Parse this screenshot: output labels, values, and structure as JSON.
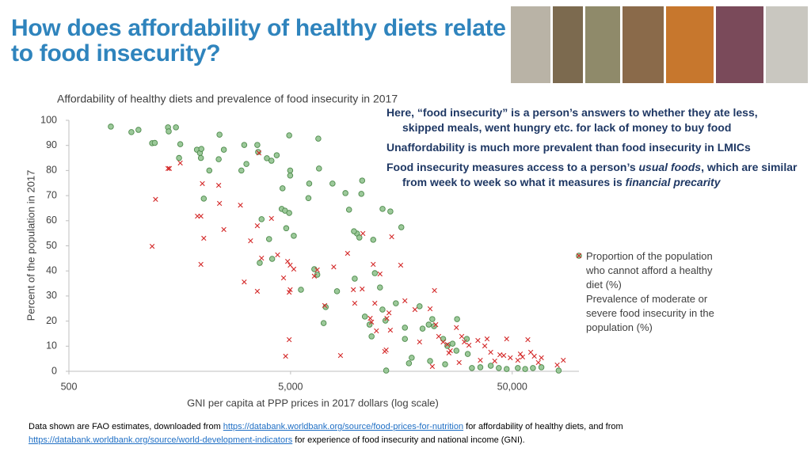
{
  "title": "How does affordability of healthy diets relate to food insecurity?",
  "chart_data": {
    "type": "scatter",
    "title": "Affordability of healthy diets and prevalence of food insecurity in 2017",
    "x_label": "GNI per capita at PPP prices in 2017 dollars (log scale)",
    "y_label": "Percent of the population in 2017",
    "x_log": true,
    "grid": false,
    "legend": "right",
    "xlim": [
      500,
      100000
    ],
    "xticks": [
      500,
      {
        "value": 5000,
        "label": "5,000"
      },
      {
        "value": 50000,
        "label": "50,000"
      }
    ],
    "ylim": [
      0,
      100
    ],
    "yticks": [
      0,
      10,
      20,
      30,
      40,
      50,
      60,
      70,
      80,
      90,
      100
    ],
    "series": [
      {
        "name": "Proportion of the population who cannot afford a healthy diet (%)",
        "color": "#9cc99a",
        "marker": "circle",
        "x": [
          773,
          957,
          1030,
          1187,
          1220,
          1400,
          1410,
          1520,
          1570,
          1590,
          1890,
          1950,
          1970,
          1980,
          2150,
          2030,
          2370,
          2390,
          2500,
          3000,
          3090,
          3160,
          3540,
          3570,
          3910,
          4100,
          4330,
          4600,
          4930,
          4980,
          4980,
          4560,
          4720,
          4930,
          4780,
          5170,
          6020,
          6670,
          6720,
          6070,
          4000,
          3700,
          3630,
          4130,
          7730,
          8840,
          9180,
          10430,
          10520,
          9970,
          9660,
          10220,
          11800,
          13000,
          14100,
          15800,
          6400,
          6600,
          5570,
          8100,
          7200,
          7050,
          9740,
          12000,
          12660,
          10820,
          11360,
          12990,
          13400,
          14930,
          16400,
          19100,
          19700,
          21000,
          21800,
          22200,
          24400,
          25500,
          26900,
          28200,
          28000,
          31500,
          35900,
          40000,
          47200,
          53000,
          57200,
          62000,
          67700,
          81000,
          13500,
          21300,
          17100,
          31200,
          32900,
          43500,
          17600,
          16400,
          24900,
          11600
        ],
        "values": [
          97.5,
          95.3,
          96.2,
          90.9,
          91,
          97.2,
          95.6,
          97.2,
          85,
          90.5,
          88.3,
          87,
          85,
          88.6,
          80,
          68.8,
          84.5,
          94.3,
          88.3,
          80,
          90.2,
          82.6,
          90.2,
          87.4,
          84.9,
          83.9,
          86.1,
          72.9,
          94,
          80,
          78,
          64.7,
          64,
          63.1,
          57,
          54,
          69,
          92.7,
          80.8,
          74.8,
          52.7,
          60.6,
          43.2,
          44.8,
          74.8,
          71,
          64.4,
          70.7,
          76,
          54.9,
          55.8,
          53.3,
          52.4,
          64.7,
          63.7,
          57.4,
          40.7,
          38.5,
          32.5,
          31.9,
          25.6,
          19.2,
          36.9,
          39.1,
          33.4,
          21.8,
          18.6,
          24.6,
          20.2,
          27.1,
          17.4,
          25.9,
          17,
          18.6,
          20.8,
          18,
          12.9,
          10.1,
          11,
          20.8,
          8.2,
          6.9,
          1.6,
          2.2,
          0.9,
          1.3,
          0.9,
          1.3,
          1.6,
          0.3,
          0.3,
          4.1,
          3.2,
          12.9,
          1.3,
          1.3,
          5.4,
          12.9,
          2.8,
          13.9
        ]
      },
      {
        "name": "Prevalence of moderate or severe food insecurity in the population (%)",
        "color": "#d42a2a",
        "marker": "x",
        "x": [
          1230,
          1187,
          1400,
          1420,
          1590,
          2000,
          2370,
          1970,
          1970,
          2030,
          1900,
          2500,
          2390,
          2970,
          3090,
          3300,
          3600,
          3540,
          3700,
          3540,
          4100,
          4370,
          4650,
          4850,
          4980,
          5170,
          4930,
          4980,
          4930,
          4750,
          6400,
          6600,
          7130,
          7830,
          8400,
          9040,
          9600,
          9740,
          10520,
          10600,
          11440,
          11600,
          11800,
          12000,
          12200,
          12660,
          13300,
          13500,
          13600,
          13900,
          14100,
          14300,
          15700,
          16400,
          18200,
          19100,
          21300,
          22300,
          22600,
          23300,
          24400,
          25500,
          25900,
          26300,
          28000,
          29600,
          30400,
          31900,
          35000,
          35900,
          37600,
          38500,
          40000,
          41700,
          44000,
          45800,
          47200,
          49000,
          53000,
          54400,
          55700,
          58800,
          60600,
          62900,
          65600,
          67700,
          79800,
          85000,
          21800,
          28800
        ],
        "values": [
          68.5,
          49.8,
          80.8,
          80.8,
          83,
          74.8,
          74.1,
          61.8,
          42.6,
          53,
          61.8,
          56.5,
          66.9,
          66.2,
          35.6,
          52,
          87,
          58,
          45.1,
          31.9,
          60.9,
          46.4,
          37.2,
          43.8,
          42.3,
          40.7,
          31.5,
          32.5,
          12.6,
          6,
          37.9,
          40.4,
          26.2,
          41.6,
          6.3,
          47,
          32.5,
          27.1,
          32.8,
          54.9,
          21.1,
          19.6,
          42.6,
          27.1,
          16.1,
          38.8,
          7.9,
          8.5,
          21.1,
          23.3,
          16.4,
          53.6,
          42.3,
          28.1,
          24.6,
          11.7,
          24.9,
          32.2,
          18.6,
          13.9,
          11.7,
          10.7,
          7.3,
          8.2,
          17.4,
          13.9,
          11.7,
          10.4,
          12.3,
          4.4,
          10.1,
          12.9,
          7.6,
          4.1,
          6.6,
          6.3,
          12.9,
          5.4,
          4.4,
          6.9,
          5.7,
          12.6,
          7.6,
          6,
          3.5,
          5.4,
          2.5,
          4.4,
          1.9,
          3.5
        ]
      }
    ]
  },
  "notes": [
    {
      "segments": [
        "Here, “food insecurity” is a person’s answers to whether they ate less, skipped meals, went hungry etc. for lack of money to buy food"
      ]
    },
    {
      "segments": [
        "Unaffordability is much more prevalent than food insecurity in LMICs"
      ]
    },
    {
      "segments": [
        "Food insecurity measures access to a person’s ",
        "usual foods",
        ", which are similar from week to week so what it measures is ",
        "financial precarity"
      ]
    }
  ],
  "footnote": {
    "segments": [
      "Data shown are FAO estimates, downloaded from ",
      "https://databank.worldbank.org/source/food-prices-for-nutrition",
      " for affordability of healthy diets, and from ",
      "https://databank.worldbank.org/source/world-development-indicators",
      " for experience of food insecurity and national income (GNI)."
    ]
  }
}
